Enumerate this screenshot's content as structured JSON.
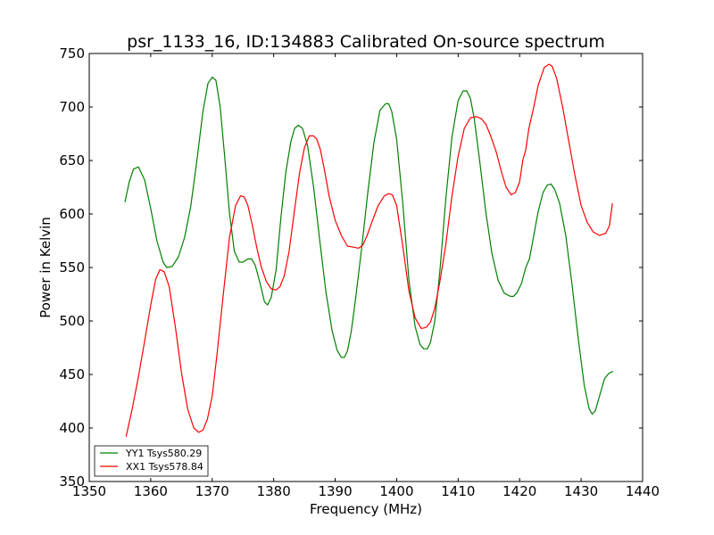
{
  "chart_data": {
    "type": "line",
    "title": "psr_1133_16, ID:134883 Calibrated On-source spectrum",
    "xlabel": "Frequency (MHz)",
    "ylabel": "Power in Kelvin",
    "xlim": [
      1350,
      1440
    ],
    "ylim": [
      350,
      750
    ],
    "xticks": [
      1350,
      1360,
      1370,
      1380,
      1390,
      1400,
      1410,
      1420,
      1430,
      1440
    ],
    "yticks": [
      350,
      400,
      450,
      500,
      550,
      600,
      650,
      700,
      750
    ],
    "grid": false,
    "legend_position": "lower-left",
    "series": [
      {
        "name": "YY1 Tsys580.29",
        "color": "#008000",
        "x": [
          1355.8,
          1356.5,
          1357.2,
          1358.0,
          1359.0,
          1360.0,
          1361.0,
          1362.0,
          1362.6,
          1363.5,
          1364.5,
          1365.5,
          1366.5,
          1367.5,
          1368.5,
          1369.3,
          1370.0,
          1370.6,
          1371.3,
          1372.0,
          1372.8,
          1373.6,
          1374.4,
          1375.0,
          1375.8,
          1376.4,
          1377.0,
          1377.8,
          1378.5,
          1379.0,
          1379.6,
          1380.4,
          1381.2,
          1382.0,
          1382.8,
          1383.4,
          1384.0,
          1384.7,
          1385.5,
          1386.5,
          1387.5,
          1388.5,
          1389.5,
          1390.3,
          1391.0,
          1391.5,
          1392.0,
          1392.6,
          1393.3,
          1394.3,
          1395.3,
          1396.3,
          1397.3,
          1398.2,
          1398.7,
          1399.2,
          1400.0,
          1401.0,
          1402.0,
          1403.0,
          1403.8,
          1404.4,
          1405.0,
          1405.5,
          1406.2,
          1407.0,
          1408.0,
          1409.0,
          1410.0,
          1410.8,
          1411.4,
          1412.0,
          1412.6,
          1413.5,
          1414.5,
          1415.5,
          1416.5,
          1417.5,
          1418.5,
          1419.0,
          1419.5,
          1420.3,
          1421.0,
          1421.6,
          1422.3,
          1423.0,
          1423.8,
          1424.5,
          1425.1,
          1425.7,
          1426.5,
          1427.5,
          1428.5,
          1429.5,
          1430.5,
          1431.3,
          1431.8,
          1432.3,
          1433.0,
          1433.8,
          1434.5,
          1435.2
        ],
        "values": [
          611,
          630,
          642,
          644,
          632,
          605,
          575,
          555,
          550,
          551,
          560,
          578,
          607,
          650,
          696,
          722,
          728,
          725,
          700,
          655,
          601,
          565,
          555,
          555,
          558,
          558,
          552,
          535,
          518,
          515,
          522,
          548,
          598,
          640,
          668,
          680,
          683,
          680,
          664,
          625,
          575,
          527,
          491,
          473,
          466,
          466,
          472,
          490,
          520,
          568,
          620,
          667,
          697,
          703,
          703,
          696,
          670,
          610,
          538,
          495,
          478,
          474,
          474,
          480,
          500,
          545,
          615,
          672,
          706,
          715,
          715,
          708,
          690,
          650,
          602,
          563,
          538,
          526,
          523,
          523,
          526,
          535,
          550,
          558,
          580,
          602,
          620,
          627,
          628,
          623,
          610,
          580,
          535,
          485,
          440,
          418,
          413,
          416,
          430,
          446,
          451,
          453
        ]
      },
      {
        "name": "XX1 Tsys578.84",
        "color": "#ff0000",
        "x": [
          1356.0,
          1357.0,
          1358.0,
          1359.0,
          1360.0,
          1360.8,
          1361.5,
          1362.2,
          1363.0,
          1364.0,
          1365.0,
          1366.0,
          1367.0,
          1367.8,
          1368.5,
          1369.2,
          1370.0,
          1370.8,
          1371.8,
          1372.8,
          1373.8,
          1374.6,
          1375.2,
          1375.8,
          1376.5,
          1377.3,
          1378.0,
          1378.8,
          1379.6,
          1380.4,
          1381.0,
          1381.7,
          1382.5,
          1383.3,
          1384.2,
          1385.0,
          1385.8,
          1386.5,
          1387.0,
          1387.6,
          1388.3,
          1389.0,
          1390.0,
          1391.0,
          1392.0,
          1393.0,
          1393.8,
          1394.5,
          1395.2,
          1396.0,
          1397.0,
          1398.0,
          1398.7,
          1399.3,
          1400.0,
          1401.0,
          1402.0,
          1403.0,
          1404.0,
          1404.8,
          1405.5,
          1406.2,
          1407.0,
          1408.0,
          1409.0,
          1410.0,
          1411.0,
          1412.0,
          1413.0,
          1413.8,
          1414.5,
          1415.3,
          1416.2,
          1417.0,
          1417.8,
          1418.6,
          1419.3,
          1420.0,
          1420.5,
          1421.0,
          1421.5,
          1422.3,
          1423.0,
          1424.0,
          1424.8,
          1425.3,
          1426.0,
          1427.0,
          1428.0,
          1429.0,
          1430.0,
          1431.0,
          1432.0,
          1433.0,
          1434.0,
          1434.6,
          1435.1
        ],
        "values": [
          392,
          418,
          448,
          481,
          515,
          539,
          548,
          546,
          532,
          495,
          452,
          418,
          400,
          396,
          398,
          408,
          430,
          470,
          525,
          578,
          608,
          617,
          616,
          608,
          590,
          567,
          550,
          537,
          530,
          529,
          532,
          542,
          565,
          600,
          638,
          662,
          673,
          673,
          670,
          660,
          640,
          617,
          594,
          580,
          570,
          569,
          568,
          571,
          580,
          593,
          608,
          617,
          619,
          618,
          608,
          570,
          528,
          503,
          493,
          494,
          499,
          512,
          536,
          572,
          617,
          654,
          680,
          690,
          691,
          689,
          684,
          673,
          658,
          640,
          625,
          618,
          620,
          630,
          650,
          660,
          680,
          700,
          720,
          737,
          740,
          738,
          727,
          700,
          668,
          636,
          608,
          592,
          583,
          580,
          582,
          589,
          610
        ]
      }
    ]
  }
}
